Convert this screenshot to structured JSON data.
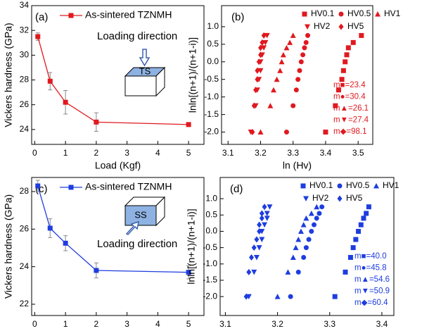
{
  "chart_data": [
    {
      "type": "line",
      "label": "(a)",
      "xlabel": "Load (Kgf)",
      "ylabel": "Vickers hardness (GPa)",
      "x": [
        0.1,
        0.5,
        1,
        2,
        5
      ],
      "series": [
        {
          "name": "As-sintered TZNMH",
          "color": "#e0191f",
          "values": [
            31.5,
            27.9,
            26.2,
            24.6,
            24.4
          ],
          "errors": [
            0.3,
            0.7,
            0.95,
            0.75,
            0.15
          ]
        }
      ],
      "xlim": [
        -0.1,
        5.5
      ],
      "ylim": [
        22.8,
        34
      ],
      "xticks": [
        0,
        1,
        2,
        3,
        4,
        5
      ],
      "yticks": [
        24,
        26,
        28,
        30,
        32,
        34
      ],
      "annotation": "Loading direction",
      "box_label": "TS"
    },
    {
      "type": "scatter",
      "label": "(b)",
      "xlabel": "ln (Hv)",
      "ylabel": "lnln[(n+1)/(n+1-i)]",
      "xlim": [
        3.08,
        3.545
      ],
      "ylim": [
        -2.35,
        1.6
      ],
      "xticks": [
        3.1,
        3.2,
        3.3,
        3.4,
        3.5
      ],
      "yticks": [
        {
          "value": -2,
          "label": "-2.0"
        },
        {
          "value": -1.5,
          "label": "-1.5"
        },
        {
          "value": -1,
          "label": "-1.0"
        },
        {
          "value": -0.5,
          "label": "-0.5"
        },
        {
          "value": 0,
          "label": "0.0"
        },
        {
          "value": 0.5,
          "label": "0.5"
        },
        {
          "value": 1,
          "label": "1.0"
        }
      ],
      "series": [
        {
          "name": "HV0.1",
          "marker": "square",
          "color": "#e0191f",
          "x": [
            3.4,
            3.43,
            3.44,
            3.45,
            3.455,
            3.46,
            3.465,
            3.47,
            3.485,
            3.51
          ],
          "values": [
            -2.0,
            -1.25,
            -0.8,
            -0.5,
            -0.25,
            0.0,
            0.2,
            0.4,
            0.55,
            0.75
          ]
        },
        {
          "name": "HV0.5",
          "marker": "circle",
          "color": "#e0191f",
          "x": [
            3.28,
            3.3,
            3.31,
            3.315,
            3.32,
            3.325,
            3.33,
            3.335,
            3.34,
            3.345
          ],
          "values": [
            -2.0,
            -1.25,
            -0.8,
            -0.5,
            -0.25,
            0.0,
            0.2,
            0.4,
            0.55,
            0.75
          ]
        },
        {
          "name": "HV1",
          "marker": "triangle-up",
          "color": "#e0191f",
          "x": [
            3.2,
            3.23,
            3.24,
            3.25,
            3.26,
            3.265,
            3.27,
            3.28,
            3.29,
            3.3
          ],
          "values": [
            -2.0,
            -1.25,
            -0.8,
            -0.5,
            -0.25,
            0.0,
            0.2,
            0.4,
            0.55,
            0.75
          ]
        },
        {
          "name": "HV2",
          "marker": "triangle-down",
          "color": "#e0191f",
          "x": [
            3.17,
            3.185,
            3.19,
            3.195,
            3.2,
            3.2,
            3.205,
            3.21,
            3.215,
            3.22
          ],
          "values": [
            -2.0,
            -1.25,
            -0.8,
            -0.5,
            -0.25,
            0.0,
            0.2,
            0.4,
            0.55,
            0.75
          ]
        },
        {
          "name": "HV5",
          "marker": "diamond",
          "color": "#e0191f",
          "x": [
            3.175,
            3.18,
            3.185,
            3.19,
            3.19,
            3.195,
            3.2,
            3.2,
            3.205,
            3.21
          ],
          "values": [
            -2.0,
            -1.25,
            -0.8,
            -0.5,
            -0.25,
            0.0,
            0.2,
            0.4,
            0.55,
            0.75
          ]
        }
      ],
      "annotations": [
        "m■=23.4",
        "m●=30.4",
        "m▲=26.1",
        "m▼=27.4",
        "m◆=98.1"
      ]
    },
    {
      "type": "line",
      "label": "(c)",
      "xlabel": "Load (Kgf)",
      "ylabel": "Vickers hardness (GPa)",
      "x": [
        0.1,
        0.5,
        1,
        2,
        5
      ],
      "series": [
        {
          "name": "As-sintered TZNMH",
          "color": "#1e3ddf",
          "values": [
            28.3,
            26.05,
            25.25,
            23.8,
            23.7
          ],
          "errors": [
            0.3,
            0.5,
            0.4,
            0.4,
            0.35
          ]
        }
      ],
      "xlim": [
        -0.1,
        5.5
      ],
      "ylim": [
        21.4,
        28.75
      ],
      "xticks": [
        0,
        1,
        2,
        3,
        4,
        5
      ],
      "yticks": [
        22,
        24,
        26,
        28
      ],
      "annotation": "Loading direction",
      "box_label": "SS"
    },
    {
      "type": "scatter",
      "label": "(d)",
      "xlabel": "ln (Hv)",
      "ylabel": "lnln[(n+1)/(n+1-i)]",
      "xlim": [
        3.09,
        3.423
      ],
      "ylim": [
        -2.58,
        1.65
      ],
      "xticks": [
        3.1,
        3.2,
        3.3,
        3.4
      ],
      "yticks": [
        {
          "value": -2,
          "label": "-2.0"
        },
        {
          "value": -1.5,
          "label": "-1.5"
        },
        {
          "value": -1,
          "label": "-1.0"
        },
        {
          "value": -0.5,
          "label": "-0.5"
        },
        {
          "value": 0,
          "label": "0.0"
        },
        {
          "value": 0.5,
          "label": "0.5"
        },
        {
          "value": 1,
          "label": "1.0"
        }
      ],
      "series": [
        {
          "name": "HV0.1",
          "marker": "square",
          "color": "#1e3ddf",
          "x": [
            3.31,
            3.33,
            3.34,
            3.345,
            3.35,
            3.355,
            3.36,
            3.365,
            3.37,
            3.375
          ],
          "values": [
            -2.0,
            -1.25,
            -0.8,
            -0.5,
            -0.25,
            0.0,
            0.2,
            0.4,
            0.55,
            0.75
          ]
        },
        {
          "name": "HV0.5",
          "marker": "circle",
          "color": "#1e3ddf",
          "x": [
            3.225,
            3.24,
            3.25,
            3.255,
            3.26,
            3.265,
            3.27,
            3.275,
            3.28,
            3.285
          ],
          "values": [
            -2.0,
            -1.25,
            -0.8,
            -0.5,
            -0.25,
            0.0,
            0.2,
            0.4,
            0.55,
            0.75
          ]
        },
        {
          "name": "HV1",
          "marker": "triangle-up",
          "color": "#1e3ddf",
          "x": [
            3.2,
            3.22,
            3.23,
            3.235,
            3.24,
            3.245,
            3.25,
            3.255,
            3.265,
            3.275
          ],
          "values": [
            -2.0,
            -1.25,
            -0.8,
            -0.5,
            -0.25,
            0.0,
            0.2,
            0.4,
            0.55,
            0.75
          ]
        },
        {
          "name": "HV2",
          "marker": "triangle-down",
          "color": "#1e3ddf",
          "x": [
            3.145,
            3.155,
            3.16,
            3.165,
            3.17,
            3.17,
            3.175,
            3.18,
            3.18,
            3.185
          ],
          "values": [
            -2.0,
            -1.25,
            -0.8,
            -0.5,
            -0.25,
            0.0,
            0.2,
            0.4,
            0.55,
            0.75
          ]
        },
        {
          "name": "HV5",
          "marker": "diamond",
          "color": "#1e3ddf",
          "x": [
            3.14,
            3.145,
            3.15,
            3.155,
            3.16,
            3.165,
            3.165,
            3.17,
            3.17,
            3.175
          ],
          "values": [
            -2.0,
            -1.25,
            -0.8,
            -0.5,
            -0.25,
            0.0,
            0.2,
            0.4,
            0.55,
            0.75
          ]
        }
      ],
      "annotations": [
        "m■=40.0",
        "m●=45.8",
        "m▲=54.6",
        "m▼=50.9",
        "m◆=60.4"
      ]
    }
  ]
}
